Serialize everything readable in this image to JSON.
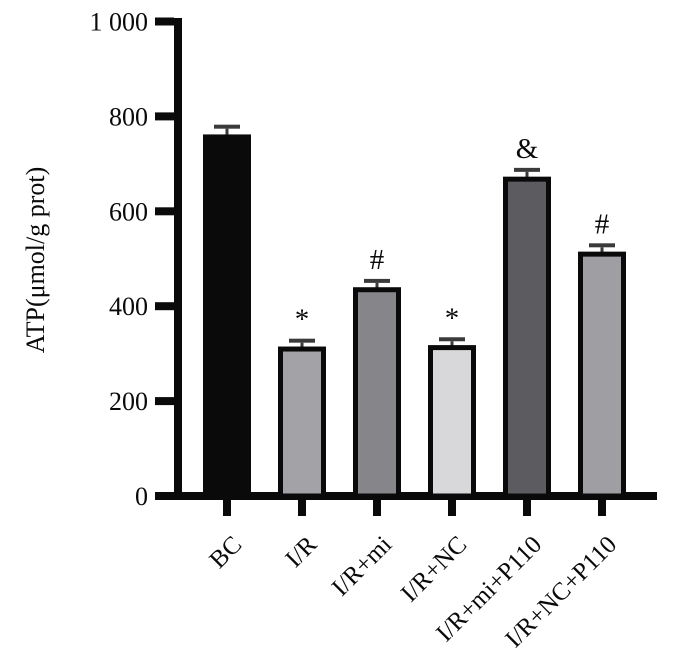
{
  "figure": {
    "background": "#ffffff",
    "description": "Grayscale bar chart of ATP content across treatment groups with SEM error bars and significance markers"
  },
  "chart_data": {
    "type": "bar",
    "title": "",
    "xlabel": "",
    "ylabel": "ATP(μmol/g prot)",
    "ylim": [
      0,
      1000
    ],
    "ytick_step": 200,
    "ytick_labels": [
      "0",
      "200",
      "400",
      "600",
      "800",
      "1 000"
    ],
    "categories": [
      "BC",
      "I/R",
      "I/R+mi",
      "I/R+NC",
      "I/R+mi+P110",
      "I/R+NC+P110"
    ],
    "series": [
      {
        "name": "ATP",
        "values": [
          762,
          315,
          440,
          318,
          673,
          515
        ],
        "errors": [
          10,
          6,
          7,
          6,
          8,
          7
        ]
      }
    ],
    "significance_labels": [
      "",
      "*",
      "#",
      "*",
      "&",
      "#"
    ],
    "bar_fill_colors": [
      "#0a0a0a",
      "#a3a3a7",
      "#85858a",
      "#d8d8da",
      "#5c5c60",
      "#9f9fa3"
    ],
    "bar_border_color": "#0a0a0a",
    "error_bar_color": "#3a3a3a",
    "axis_color": "#0a0a0a",
    "grid": false,
    "legend_position": "none",
    "x_labels_rotation_deg": -45
  }
}
